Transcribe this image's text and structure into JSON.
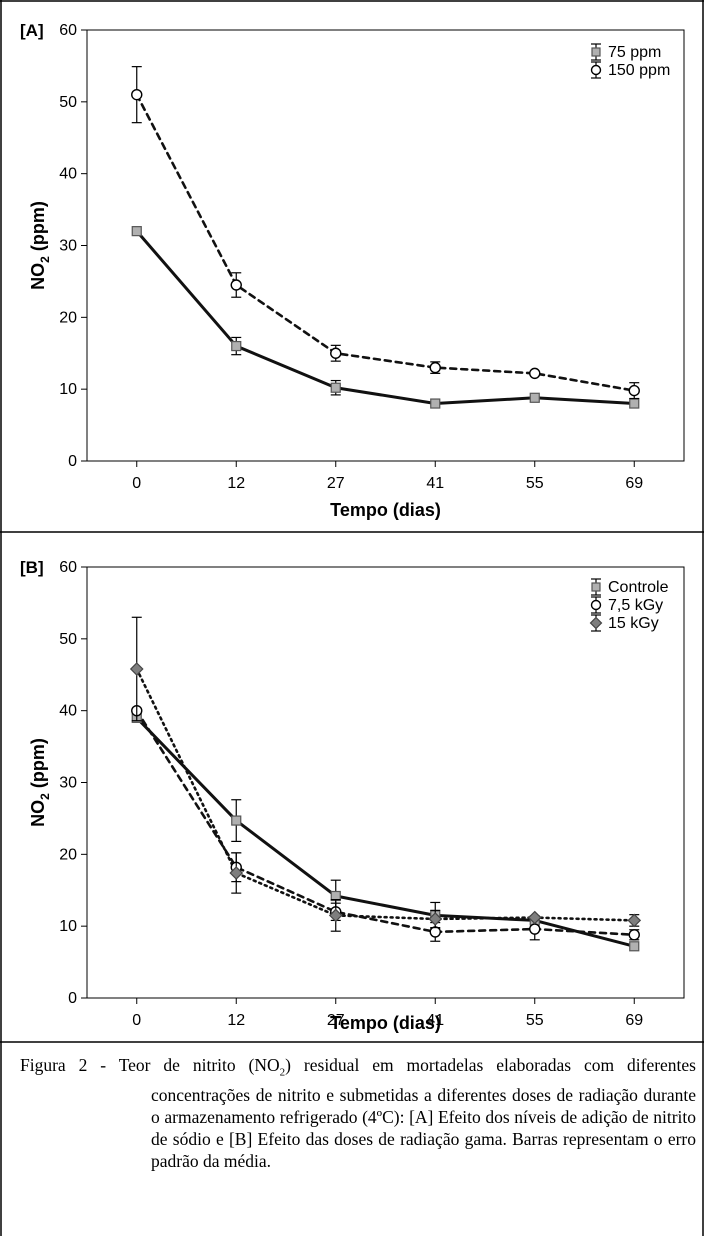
{
  "chart_data": [
    {
      "type": "line",
      "panel_label": "[A]",
      "xlabel": "Tempo (dias)",
      "ylabel_main": "NO",
      "ylabel_sub": "2",
      "ylabel_tail": " (ppm)",
      "categories": [
        "0",
        "12",
        "27",
        "41",
        "55",
        "69"
      ],
      "ylim": [
        0,
        60
      ],
      "yticks": [
        0,
        10,
        20,
        30,
        40,
        50,
        60
      ],
      "grid": false,
      "legend_position": "top-right",
      "series": [
        {
          "name": "75 ppm",
          "marker": "square",
          "line": "solid",
          "values": [
            32,
            16,
            10.2,
            8,
            8.8,
            8
          ],
          "errors": [
            0.3,
            1.2,
            1.0,
            0.5,
            0.4,
            0.4
          ]
        },
        {
          "name": "150 ppm",
          "marker": "circle",
          "line": "dashed",
          "values": [
            51,
            24.5,
            15,
            13,
            12.2,
            9.8
          ],
          "errors": [
            3.9,
            1.7,
            1.1,
            0.8,
            0.4,
            1.1
          ]
        }
      ]
    },
    {
      "type": "line",
      "panel_label": "[B]",
      "xlabel": "Tempo (dias)",
      "ylabel_main": "NO",
      "ylabel_sub": "2",
      "ylabel_tail": " (ppm)",
      "categories": [
        "0",
        "12",
        "27",
        "41",
        "55",
        "69"
      ],
      "ylim": [
        0,
        60
      ],
      "yticks": [
        0,
        10,
        20,
        30,
        40,
        50,
        60
      ],
      "grid": false,
      "legend_position": "top-right",
      "series": [
        {
          "name": "Controle",
          "marker": "square",
          "line": "solid",
          "values": [
            39,
            24.7,
            14.2,
            11.5,
            10.8,
            7.2
          ],
          "errors": [
            0.4,
            2.9,
            2.2,
            1.8,
            0.6,
            0.4
          ]
        },
        {
          "name": "7,5 kGy",
          "marker": "circle",
          "line": "dashed",
          "values": [
            40,
            18.2,
            12,
            9.2,
            9.6,
            8.8
          ],
          "errors": [
            0.5,
            2.0,
            1.2,
            1.3,
            1.5,
            0.7
          ]
        },
        {
          "name": "15 kGy",
          "marker": "diamond",
          "line": "dotted",
          "values": [
            45.8,
            17.4,
            11.5,
            11,
            11.2,
            10.8
          ],
          "errors": [
            7.2,
            2.8,
            2.2,
            1.2,
            0.4,
            0.8
          ]
        }
      ]
    }
  ],
  "caption": {
    "prefix": "Figura 2 - Teor de nitrito (NO",
    "sub": "2",
    "rest": ") residual em mortadelas elaboradas com diferentes concentrações de nitrito e submetidas a diferentes doses de radiação durante o armazenamento refrigerado (4ºC): [A] Efeito dos níveis de adição de nitrito de sódio e [B] Efeito das doses de radiação gama. Barras representam o erro padrão da média."
  }
}
